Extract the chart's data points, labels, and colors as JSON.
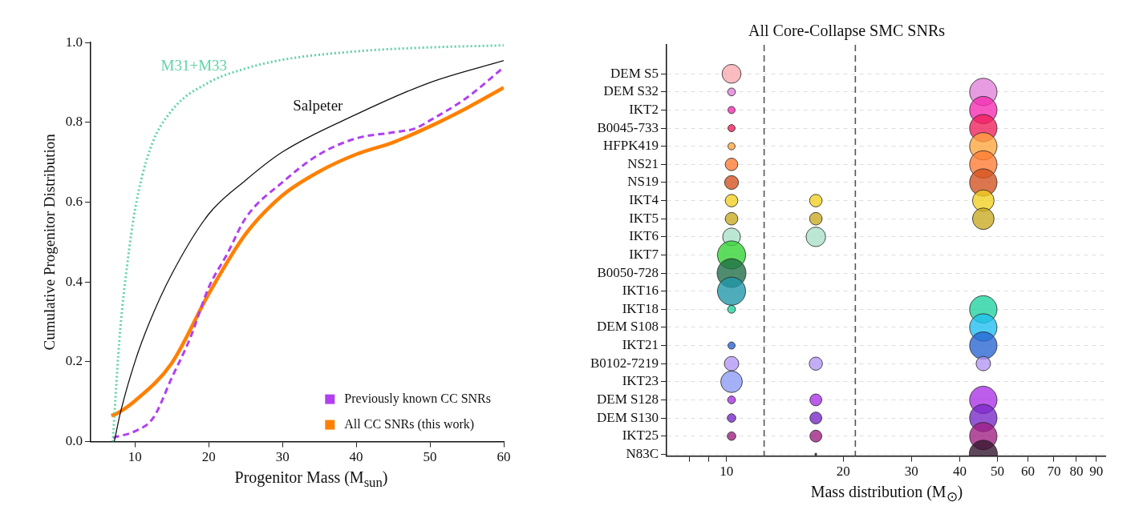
{
  "chart_data": [
    {
      "type": "line",
      "xlabel": "Progenitor Mass (M$_{sun}$)",
      "ylabel": "Cumulative Progenitor Distribution",
      "xlim": [
        4,
        60
      ],
      "xticks": [
        10,
        20,
        30,
        40,
        50,
        60
      ],
      "ylim": [
        0,
        1
      ],
      "yticks": [
        {
          "value": 0,
          "label": "0.0"
        },
        0.2,
        0.4,
        0.6,
        0.8,
        {
          "value": 1,
          "label": "1.0"
        }
      ],
      "grid": false,
      "legend": "bottom right",
      "series": [
        {
          "color": "#5fd3a5",
          "line_style": "dotted",
          "x": [
            7,
            7.5,
            8,
            9,
            10,
            12,
            15,
            20,
            25,
            30,
            40,
            50,
            60
          ],
          "values": [
            0,
            0.15,
            0.28,
            0.45,
            0.58,
            0.73,
            0.83,
            0.9,
            0.935,
            0.957,
            0.978,
            0.988,
            0.993
          ]
        },
        {
          "color": "#111111",
          "line_style": "solid",
          "x": [
            7.2,
            8,
            10,
            12,
            15,
            20,
            25,
            30,
            40,
            50,
            60
          ],
          "values": [
            0,
            0.07,
            0.2,
            0.3,
            0.42,
            0.57,
            0.655,
            0.726,
            0.82,
            0.9,
            0.955
          ]
        },
        {
          "name": "Previously known CC SNRs",
          "color": "#b040f0",
          "line_style": "dashed",
          "x": [
            7,
            10,
            12.5,
            15,
            17.5,
            20,
            22.5,
            25,
            30,
            35,
            40,
            45,
            48,
            50,
            55,
            60
          ],
          "values": [
            0.01,
            0.026,
            0.06,
            0.16,
            0.26,
            0.386,
            0.47,
            0.56,
            0.65,
            0.72,
            0.76,
            0.775,
            0.785,
            0.805,
            0.862,
            0.938
          ]
        },
        {
          "name": "All CC SNRs (this work)",
          "color": "#ff8000",
          "line_style": "solid",
          "x": [
            6.8,
            7.5,
            10,
            15,
            20,
            25,
            30,
            35,
            40,
            45,
            50,
            55,
            60
          ],
          "values": [
            0.065,
            0.07,
            0.102,
            0.197,
            0.37,
            0.52,
            0.617,
            0.677,
            0.72,
            0.75,
            0.79,
            0.836,
            0.887
          ]
        }
      ],
      "annotations": [
        "M31+M33",
        "Salpeter"
      ]
    },
    {
      "type": "bubble",
      "orientation": "horizontal",
      "title": "All Core-Collapse SMC SNRs",
      "xlabel": "Mass distribution (M$_{⊙}$)",
      "log": "x",
      "grid": "y",
      "xlim": [
        7,
        95
      ],
      "xticks": [
        {
          "value": 8,
          "label": null
        },
        {
          "value": 9,
          "label": null
        },
        10,
        20,
        30,
        40,
        50,
        60,
        70,
        80,
        90
      ],
      "categories": [
        "DEM S5",
        "DEM S32",
        "IKT2",
        "B0045-733",
        "HFPK419",
        "NS21",
        "NS19",
        "IKT4",
        "IKT5",
        "IKT6",
        "IKT7",
        "B0050-728",
        "IKT16",
        "IKT18",
        "DEM S108",
        "IKT21",
        "B0102-7219",
        "IKT23",
        "DEM S128",
        "DEM S130",
        "IKT25",
        "N83C"
      ],
      "ref_lines": [
        {
          "axis": "x",
          "value": 12.5,
          "color": "#555555",
          "line_style": "dashed"
        },
        {
          "axis": "x",
          "value": 21.5,
          "color": "#555555",
          "line_style": "dashed"
        }
      ],
      "series": [
        {
          "values": [
            10.3,
            10.3,
            10.3,
            10.3,
            10.3,
            10.3,
            10.3,
            10.3,
            10.3,
            10.3,
            10.3,
            10.3,
            10.3,
            10.3,
            null,
            10.3,
            10.3,
            10.3,
            10.3,
            10.3,
            10.3,
            null
          ],
          "sizes": [
            0.43,
            0.074,
            0.062,
            0.062,
            0.062,
            0.19,
            0.23,
            0.19,
            0.19,
            0.38,
            0.95,
            1,
            0.95,
            0.074,
            null,
            0.062,
            0.25,
            0.56,
            0.074,
            0.087,
            0.087,
            null
          ],
          "colors": [
            "#f9a8b0",
            "#e080d8",
            "#f52ab0",
            "#f01e5a",
            "#ffa43c",
            "#ff7a32",
            "#d2501e",
            "#f0d020",
            "#c8aa20",
            "#a8e0c8",
            "#32d232",
            "#1e6e46",
            "#1e96a8",
            "#1ed2a0",
            null,
            "#2864d2",
            "#b496f5",
            "#8c9cf5",
            "#aa32e6",
            "#7828c8",
            "#a01e82",
            null
          ]
        },
        {
          "values": [
            null,
            null,
            null,
            null,
            null,
            null,
            null,
            17,
            17,
            17,
            null,
            null,
            null,
            null,
            null,
            null,
            17,
            null,
            17,
            17,
            17,
            17
          ],
          "sizes": [
            null,
            null,
            null,
            null,
            null,
            null,
            null,
            0.19,
            0.19,
            0.46,
            null,
            null,
            null,
            null,
            null,
            null,
            0.21,
            null,
            0.17,
            0.17,
            0.17,
            0.005
          ],
          "colors": [
            null,
            null,
            null,
            null,
            null,
            null,
            null,
            "#f0d020",
            "#c8aa20",
            "#a8e0c8",
            null,
            null,
            null,
            null,
            null,
            null,
            "#b496f5",
            null,
            "#aa32e6",
            "#7828c8",
            "#a01e82",
            "#32142d"
          ]
        },
        {
          "values": [
            null,
            46,
            46,
            46,
            46,
            46,
            46,
            46,
            46,
            null,
            null,
            null,
            null,
            46,
            46,
            46,
            46,
            null,
            46,
            46,
            46,
            46
          ],
          "sizes": [
            null,
            0.9,
            0.9,
            0.9,
            0.9,
            0.9,
            0.9,
            0.56,
            0.56,
            null,
            null,
            null,
            null,
            0.9,
            0.9,
            0.9,
            0.25,
            null,
            0.9,
            0.9,
            0.9,
            0.95
          ],
          "colors": [
            null,
            "#e080d8",
            "#f52ab0",
            "#f01e5a",
            "#ffa43c",
            "#ff7a32",
            "#d2501e",
            "#f0d020",
            "#c8aa20",
            null,
            null,
            null,
            null,
            "#1ed2a0",
            "#1ebef0",
            "#2864d2",
            "#b496f5",
            null,
            "#aa32e6",
            "#7828c8",
            "#a01e82",
            "#32142d"
          ]
        }
      ]
    }
  ]
}
